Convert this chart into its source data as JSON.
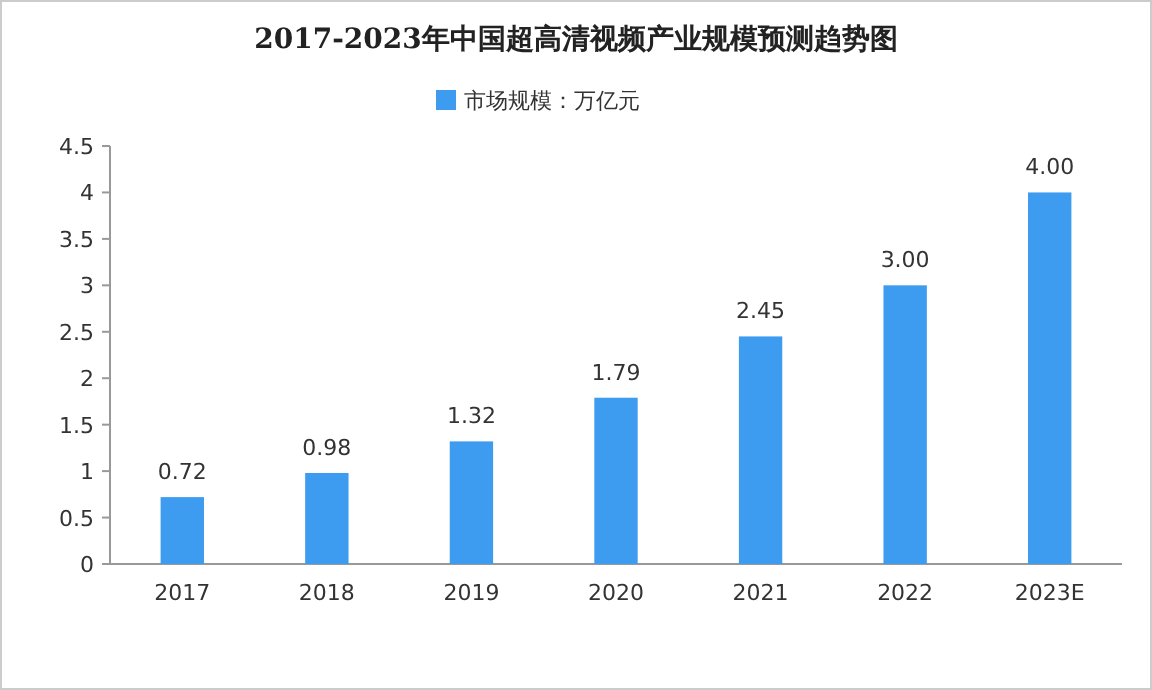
{
  "chart_data": {
    "type": "bar",
    "title": "2017-2023年中国超高清视频产业规模预测趋势图",
    "categories": [
      "2017",
      "2018",
      "2019",
      "2020",
      "2021",
      "2022",
      "2023E"
    ],
    "series": [
      {
        "name": "市场规模：万亿元",
        "color": "#3d9bf0",
        "values": [
          0.72,
          0.98,
          1.32,
          1.79,
          2.45,
          3.0,
          4.0
        ],
        "value_labels": [
          "0.72",
          "0.98",
          "1.32",
          "1.79",
          "2.45",
          "3.00",
          "4.00"
        ]
      }
    ],
    "ylim": [
      0,
      4.5
    ],
    "yticks": [
      0,
      0.5,
      1,
      1.5,
      2,
      2.5,
      3,
      3.5,
      4,
      4.5
    ],
    "grid": false,
    "legend": "top"
  }
}
